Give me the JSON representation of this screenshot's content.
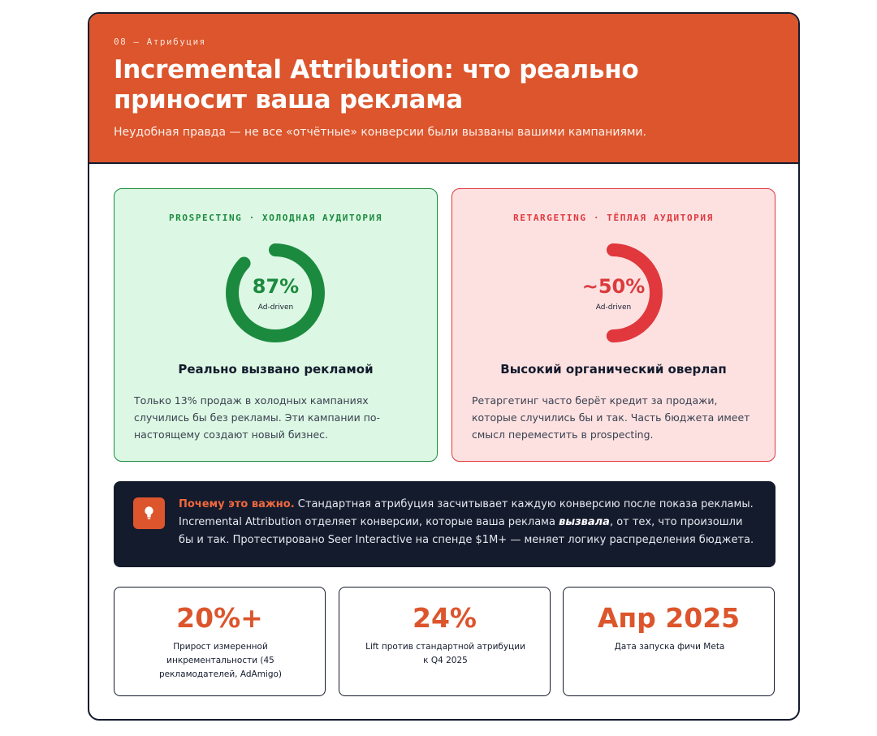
{
  "header": {
    "eyebrow": "08 — Атрибуция",
    "title": "Incremental Attribution: что реально приносит ваша реклама",
    "subtitle": "Неудобная правда — не все «отчётные» конверсии были вызваны вашими кампаниями."
  },
  "panels": [
    {
      "eyebrow": "PROSPECTING · ХОЛОДНАЯ АУДИТОРИЯ",
      "value": "87%",
      "share": 0.87,
      "caption": "Ad-driven",
      "heading": "Реально вызвано рекламой",
      "body": "Только 13% продаж в холодных кампаниях случились бы без рекламы. Эти кампании по-настоящему создают новый бизнес.",
      "color": "#1c8a3e",
      "track": "#dcf8e4"
    },
    {
      "eyebrow": "RETARGETING · ТЁПЛАЯ АУДИТОРИЯ",
      "value": "~50%",
      "share": 0.5,
      "caption": "Ad-driven",
      "heading": "Высокий органический оверлап",
      "body": "Ретаргетинг часто берёт кредит за продажи, которые случились бы и так. Часть бюджета имеет смысл переместить в prospecting.",
      "color": "#e0383c",
      "track": "#fde1e1"
    }
  ],
  "callout": {
    "icon": "lightbulb-icon",
    "lead": "Почему это важно.",
    "text1": " Стандартная атрибуция засчитывает каждую конверсию после показа рекламы. Incremental Attribution отделяет конверсии, которые ваша реклама ",
    "emph": "вызвала",
    "text2": ", от тех, что произошли бы и так. Протестировано Seer Interactive на спенде $1M+ — меняет логику распределения бюджета."
  },
  "stats": [
    {
      "value": "20%+",
      "label": "Прирост измеренной инкрементальности (45 рекламодателей, AdAmigo)"
    },
    {
      "value": "24%",
      "label": "Lift против стандартной атрибуции к Q4 2025"
    },
    {
      "value": "Апр 2025",
      "label": "Дата запуска фичи Meta"
    }
  ],
  "colors": {
    "accent": "#dc552c",
    "navy": "#141b2d",
    "green": "#1c8a3e",
    "red": "#e0383c"
  }
}
